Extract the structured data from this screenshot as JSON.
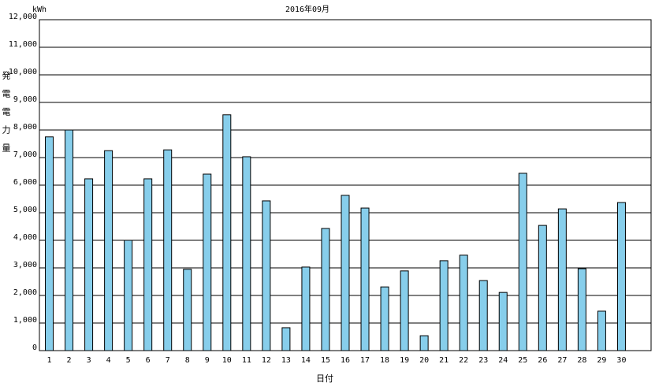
{
  "chart_data": {
    "type": "bar",
    "title": "2016年09月",
    "unit_label": "kWh",
    "y_label": "発電電力量",
    "x_label": "日付",
    "categories": [
      "1",
      "2",
      "3",
      "4",
      "5",
      "6",
      "7",
      "8",
      "9",
      "10",
      "11",
      "12",
      "13",
      "14",
      "15",
      "16",
      "17",
      "18",
      "19",
      "20",
      "21",
      "22",
      "23",
      "24",
      "25",
      "26",
      "27",
      "28",
      "29",
      "30"
    ],
    "values": [
      7750,
      8000,
      6230,
      7250,
      4000,
      6230,
      7280,
      2950,
      6400,
      8550,
      7030,
      5430,
      830,
      3030,
      4430,
      5630,
      5170,
      2310,
      2890,
      540,
      3260,
      3460,
      2540,
      2110,
      6430,
      4540,
      5140,
      2970,
      1430,
      5370
    ],
    "color": "#87ceeb",
    "ylim": [
      0,
      12000
    ],
    "yticks": [
      0,
      {
        "value": 1000,
        "label": "1,000"
      },
      {
        "value": 2000,
        "label": "2,000"
      },
      {
        "value": 3000,
        "label": "3,000"
      },
      {
        "value": 4000,
        "label": "4,000"
      },
      {
        "value": 5000,
        "label": "5,000"
      },
      {
        "value": 6000,
        "label": "6,000"
      },
      {
        "value": 7000,
        "label": "7,000"
      },
      {
        "value": 8000,
        "label": "8,000"
      },
      {
        "value": 9000,
        "label": "9,000"
      },
      {
        "value": 10000,
        "label": "10,000"
      },
      {
        "value": 11000,
        "label": "11,000"
      },
      {
        "value": 12000,
        "label": "12,000"
      }
    ],
    "grid": true
  }
}
